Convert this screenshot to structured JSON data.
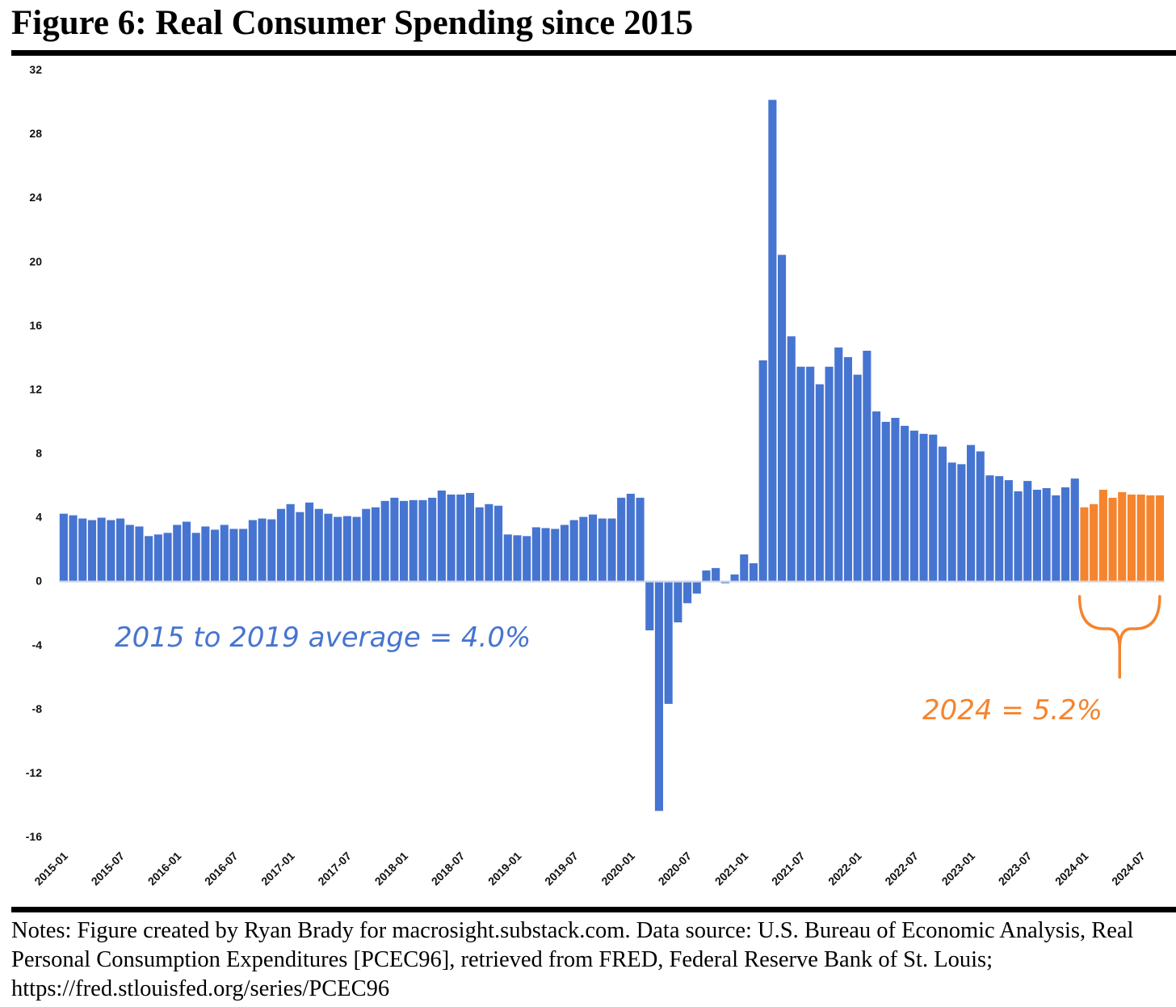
{
  "title": "Figure 6: Real Consumer Spending since 2015",
  "notes": "Notes: Figure created by Ryan Brady for macrosight.substack.com. Data source: U.S. Bureau of Economic Analysis, Real Personal Consumption Expenditures [PCEC96], retrieved from FRED, Federal Reserve Bank of St. Louis; https://fred.stlouisfed.org/series/PCEC96",
  "colors": {
    "blue": "#4674D1",
    "orange": "#F5842E"
  },
  "chart_data": {
    "type": "bar",
    "title": "",
    "xlabel": "",
    "ylabel": "",
    "ylim": [
      -16,
      32
    ],
    "yticks": [
      32,
      28,
      24,
      20,
      16,
      12,
      8,
      4,
      0,
      -4,
      -8,
      -12,
      -16
    ],
    "xtick_labels": [
      "2015-01",
      "2015-07",
      "2016-01",
      "2016-07",
      "2017-01",
      "2017-07",
      "2018-01",
      "2018-07",
      "2019-01",
      "2019-07",
      "2020-01",
      "2020-07",
      "2021-01",
      "2021-07",
      "2022-01",
      "2022-07",
      "2023-01",
      "2023-07",
      "2024-01",
      "2024-07"
    ],
    "grid": false,
    "start_month": "2015-01",
    "series": [
      {
        "color": "#4674D1",
        "values": [
          4.2,
          4.1,
          3.9,
          3.8,
          3.95,
          3.8,
          3.9,
          3.5,
          3.4,
          2.8,
          2.9,
          3.0,
          3.5,
          3.7,
          3.0,
          3.4,
          3.2,
          3.5,
          3.25,
          3.25,
          3.8,
          3.9,
          3.85,
          4.5,
          4.8,
          4.3,
          4.9,
          4.5,
          4.2,
          4.0,
          4.05,
          4.0,
          4.5,
          4.6,
          5.0,
          5.2,
          5.0,
          5.05,
          5.05,
          5.2,
          5.65,
          5.4,
          5.4,
          5.5,
          4.6,
          4.8,
          4.7,
          2.9,
          2.85,
          2.8,
          3.35,
          3.3,
          3.25,
          3.5,
          3.8,
          4.0,
          4.15,
          3.9,
          3.9,
          5.2,
          5.45,
          5.2,
          -3.1,
          -14.4,
          -7.7,
          -2.6,
          -1.4,
          -0.8,
          0.65,
          0.8,
          -0.15,
          0.4,
          1.65,
          1.1,
          13.8,
          30.1,
          20.4,
          15.3,
          13.4,
          13.4,
          12.3,
          13.4,
          14.6,
          14.0,
          12.9,
          14.4,
          10.6,
          9.95,
          10.2,
          9.7,
          9.4,
          9.2,
          9.15,
          8.4,
          7.4,
          7.3,
          8.5,
          8.1,
          6.6,
          6.55,
          6.3,
          5.6,
          6.25,
          5.7,
          5.8,
          5.35,
          5.85,
          6.4
        ]
      },
      {
        "color": "#F5842E",
        "values": [
          4.6,
          4.8,
          5.7,
          5.2,
          5.55,
          5.4,
          5.4,
          5.35,
          5.35
        ]
      }
    ],
    "annotations": [
      {
        "text": "2015 to 2019 average = 4.0%",
        "color": "#4674D1"
      },
      {
        "text": "2024 = 5.2%",
        "color": "#F5842E"
      }
    ]
  }
}
